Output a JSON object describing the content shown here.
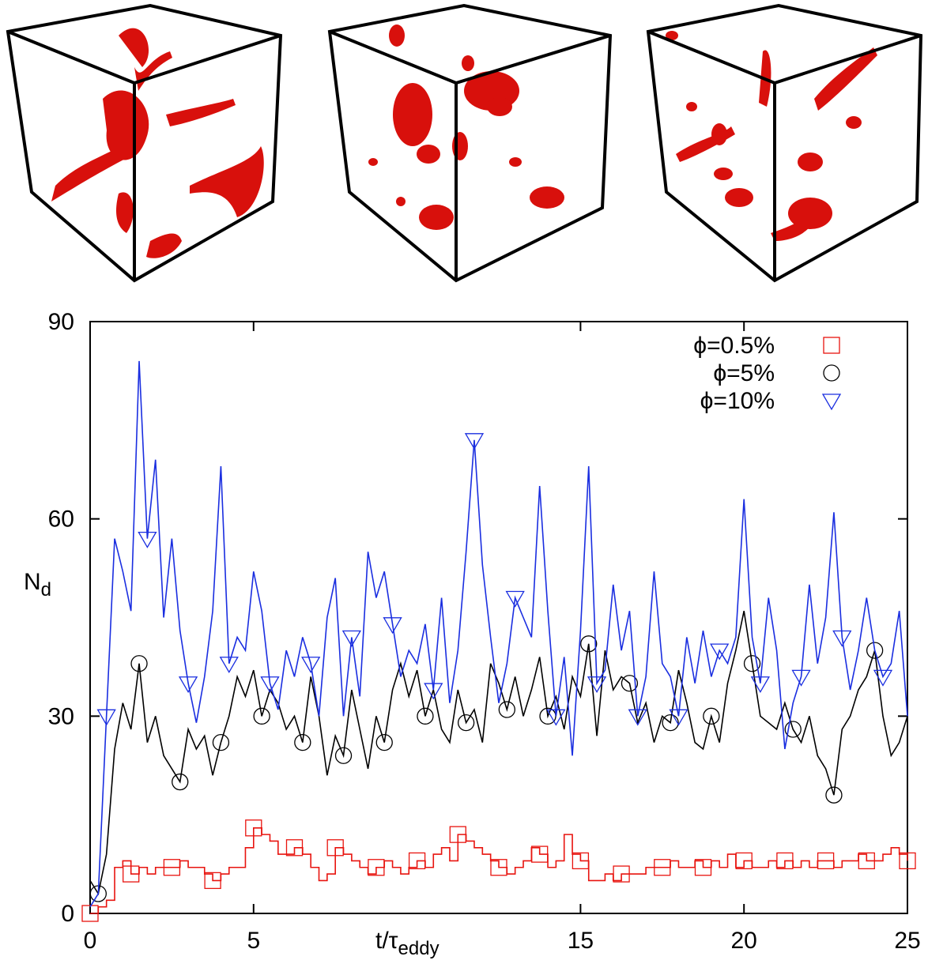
{
  "chart_data": {
    "type": "line",
    "x_label": {
      "main": "t/τ",
      "sub": "eddy"
    },
    "y_label": {
      "main": "N",
      "sub": "d"
    },
    "xlim": [
      0,
      25
    ],
    "ylim": [
      0,
      90
    ],
    "xticks": [
      0,
      5,
      15,
      20,
      25
    ],
    "yticks": [
      0,
      30,
      60,
      90
    ],
    "legend": "top-right",
    "x": [
      0,
      0.25,
      0.5,
      0.75,
      1,
      1.25,
      1.5,
      1.75,
      2,
      2.25,
      2.5,
      2.75,
      3,
      3.25,
      3.5,
      3.75,
      4,
      4.25,
      4.5,
      4.75,
      5,
      5.25,
      5.5,
      5.75,
      6,
      6.25,
      6.5,
      6.75,
      7,
      7.25,
      7.5,
      7.75,
      8,
      8.25,
      8.5,
      8.75,
      9,
      9.25,
      9.5,
      9.75,
      10,
      10.25,
      10.5,
      10.75,
      11,
      11.25,
      11.5,
      11.75,
      12,
      12.25,
      12.5,
      12.75,
      13,
      13.25,
      13.5,
      13.75,
      14,
      14.25,
      14.5,
      14.75,
      15,
      15.25,
      15.5,
      15.75,
      16,
      16.25,
      16.5,
      16.75,
      17,
      17.25,
      17.5,
      17.75,
      18,
      18.25,
      18.5,
      18.75,
      19,
      19.25,
      19.5,
      19.75,
      20,
      20.25,
      20.5,
      20.75,
      21,
      21.25,
      21.5,
      21.75,
      22,
      22.25,
      22.5,
      22.75,
      23,
      23.25,
      23.5,
      23.75,
      24,
      24.25,
      24.5,
      24.75,
      25
    ],
    "series": [
      {
        "name": "ϕ=0.5%",
        "color": "#e8140f",
        "marker": "square",
        "step": true,
        "values": [
          0,
          1,
          2,
          7,
          8,
          6,
          7,
          6,
          7,
          7,
          7,
          8,
          7,
          7,
          6,
          5,
          6,
          7,
          7,
          10,
          13,
          12,
          11,
          9,
          9,
          10,
          9,
          7,
          5,
          6,
          10,
          9,
          8,
          7,
          6,
          7,
          8,
          7,
          6,
          7,
          8,
          7,
          9,
          10,
          8,
          12,
          11,
          10,
          9,
          8,
          7,
          6,
          7,
          8,
          10,
          9,
          7,
          8,
          12,
          9,
          8,
          5,
          5,
          6,
          5,
          6,
          6,
          6,
          7,
          7,
          7,
          8,
          7,
          7,
          8,
          7,
          8,
          7,
          9,
          7,
          8,
          7,
          7,
          8,
          7,
          8,
          7,
          8,
          7,
          8,
          8,
          7,
          8,
          8,
          9,
          8,
          8,
          9,
          10,
          9,
          8
        ]
      },
      {
        "name": "ϕ=5%",
        "color": "#000000",
        "marker": "circle",
        "step": false,
        "values": [
          5,
          3,
          9,
          25,
          32,
          28,
          38,
          26,
          30,
          24,
          22,
          20,
          28,
          25,
          27,
          21,
          26,
          30,
          36,
          33,
          37,
          30,
          34,
          32,
          28,
          30,
          26,
          36,
          30,
          21,
          27,
          24,
          34,
          28,
          22,
          30,
          26,
          34,
          38,
          33,
          37,
          30,
          34,
          28,
          26,
          34,
          29,
          31,
          26,
          38,
          35,
          31,
          36,
          30,
          34,
          39,
          30,
          33,
          28,
          36,
          33,
          41,
          27,
          40,
          34,
          36,
          35,
          29,
          32,
          26,
          30,
          29,
          37,
          32,
          26,
          25,
          30,
          26,
          35,
          40,
          46,
          38,
          30,
          29,
          28,
          32,
          28,
          26,
          30,
          24,
          22,
          18,
          28,
          30,
          34,
          36,
          40,
          30,
          24,
          26,
          30
        ]
      },
      {
        "name": "ϕ=10%",
        "color": "#1a2ee0",
        "marker": "triangle",
        "step": false,
        "values": [
          1,
          3,
          30,
          57,
          52,
          46,
          84,
          57,
          69,
          45,
          57,
          43,
          35,
          29,
          36,
          46,
          68,
          38,
          42,
          40,
          52,
          46,
          35,
          31,
          40,
          36,
          42,
          38,
          30,
          45,
          51,
          30,
          42,
          33,
          55,
          48,
          52,
          44,
          36,
          40,
          38,
          44,
          34,
          48,
          32,
          40,
          55,
          72,
          53,
          42,
          32,
          38,
          48,
          45,
          42,
          65,
          46,
          30,
          39,
          24,
          43,
          68,
          35,
          37,
          50,
          40,
          46,
          30,
          36,
          52,
          38,
          36,
          30,
          42,
          35,
          43,
          36,
          40,
          38,
          42,
          63,
          42,
          35,
          48,
          40,
          25,
          32,
          36,
          50,
          38,
          45,
          61,
          42,
          34,
          40,
          48,
          40,
          36,
          38,
          46,
          30
        ]
      }
    ]
  }
}
